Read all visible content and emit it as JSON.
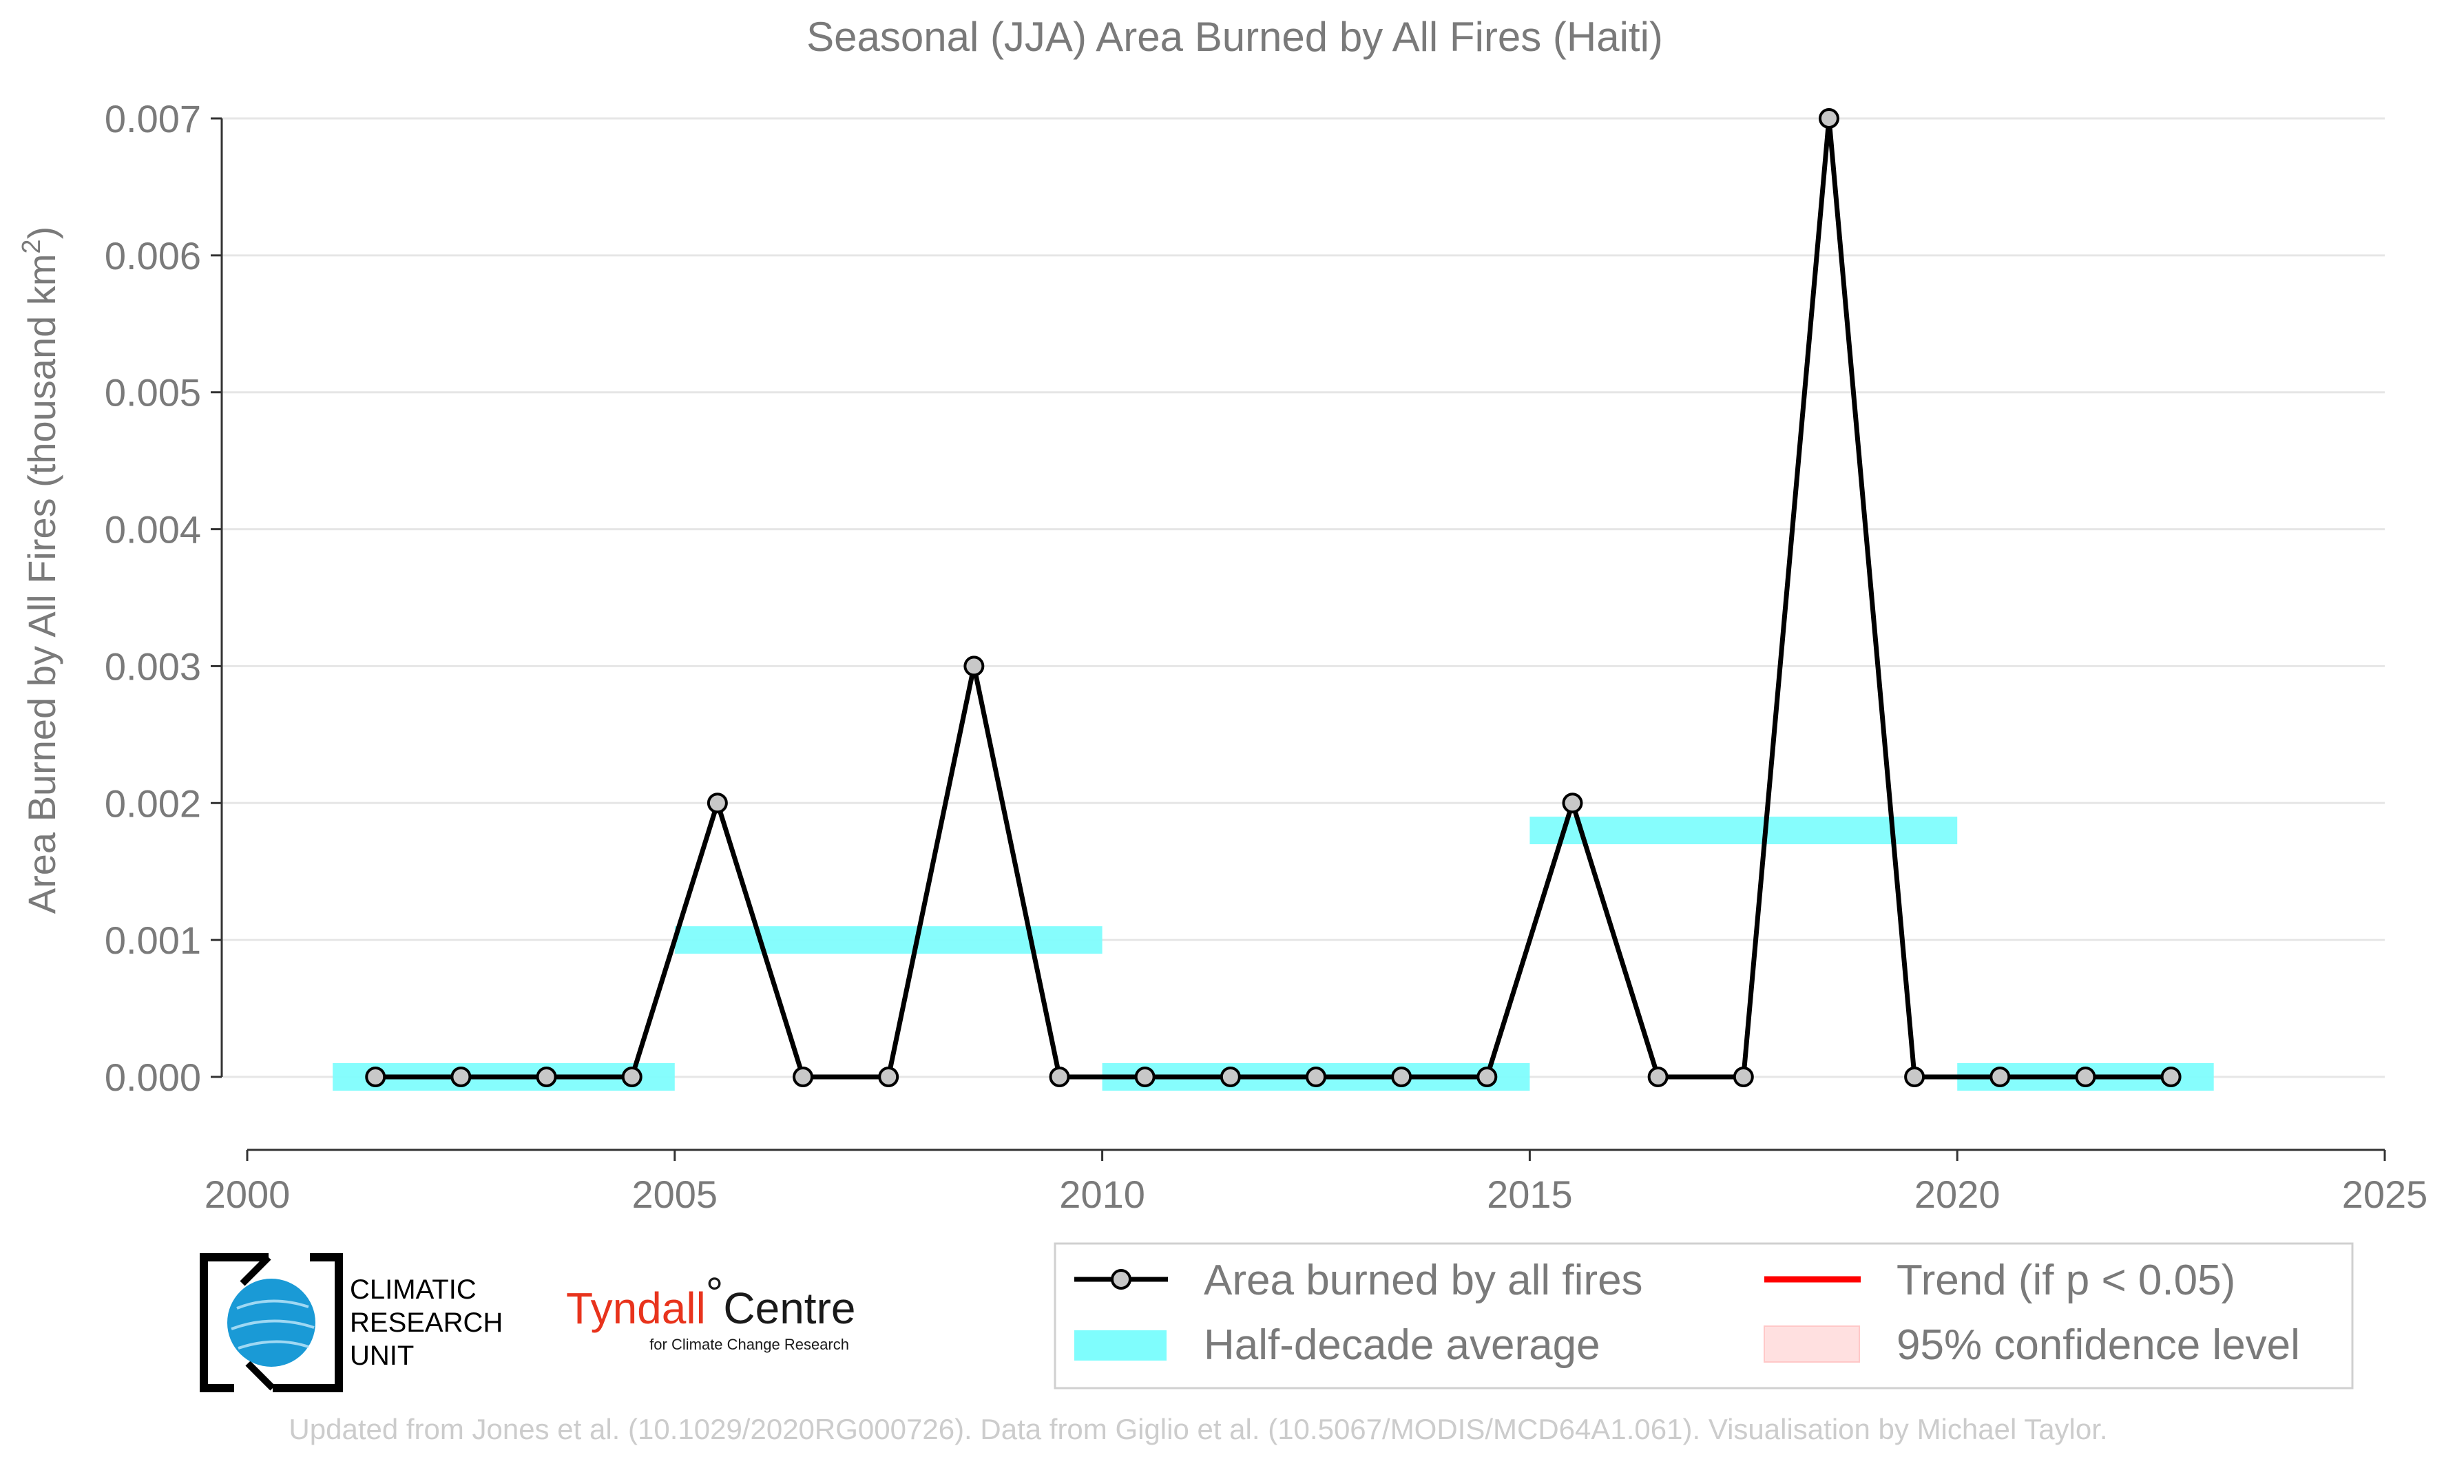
{
  "chart_data": {
    "type": "line",
    "title": "Seasonal (JJA) Area Burned by All Fires (Haiti)",
    "ylabel": "Area Burned by All Fires (thousand km²)",
    "xlabel": "",
    "xlim": [
      2000,
      2025
    ],
    "ylim": [
      -0.00053,
      0.007
    ],
    "x_ticks": [
      "2000",
      "2005",
      "2010",
      "2015",
      "2020",
      "2025"
    ],
    "y_ticks": [
      "0.000",
      "0.001",
      "0.002",
      "0.003",
      "0.004",
      "0.005",
      "0.006",
      "0.007"
    ],
    "grid": true,
    "series": [
      {
        "name": "Area burned by all fires",
        "color": "#000000",
        "x": [
          2001.5,
          2002.5,
          2003.5,
          2004.5,
          2005.5,
          2006.5,
          2007.5,
          2008.5,
          2009.5,
          2010.5,
          2011.5,
          2012.5,
          2013.5,
          2014.5,
          2015.5,
          2016.5,
          2017.5,
          2018.5,
          2019.5,
          2020.5,
          2021.5,
          2022.5
        ],
        "values": [
          0,
          0,
          0,
          0,
          0.002,
          0,
          0,
          0.003,
          0,
          0,
          0,
          0,
          0,
          0,
          0.002,
          0,
          0,
          0.007,
          0,
          0,
          0,
          0
        ]
      }
    ],
    "half_decade_average": {
      "name": "Half-decade average",
      "color": "#7ffdfd",
      "segments": [
        {
          "start": 2001,
          "end": 2005,
          "value": 0
        },
        {
          "start": 2005,
          "end": 2010,
          "value": 0.001
        },
        {
          "start": 2010,
          "end": 2015,
          "value": 0
        },
        {
          "start": 2015,
          "end": 2020,
          "value": 0.0018
        },
        {
          "start": 2020,
          "end": 2023,
          "value": 0
        }
      ]
    },
    "legend": {
      "placement": "bottom-right",
      "entries": [
        {
          "label": "Area burned by all fires",
          "kind": "line-marker",
          "color": "#000000"
        },
        {
          "label": "Trend (if p < 0.05)",
          "kind": "line",
          "color": "#ff0000"
        },
        {
          "label": "Half-decade average",
          "kind": "band",
          "color": "#7ffdfd"
        },
        {
          "label": "95% confidence level",
          "kind": "patch",
          "color": "#ffe0e0"
        }
      ]
    }
  },
  "logos": {
    "cru": {
      "lines": [
        "CLIMATIC",
        "RESEARCH",
        "UNIT"
      ]
    },
    "tyndall": {
      "main": "Tyndall",
      "degree": "°",
      "centre": "Centre",
      "sub": "for Climate Change Research"
    }
  },
  "footer": "Updated from Jones et al. (10.1029/2020RG000726). Data from Giglio et al. (10.5067/MODIS/MCD64A1.061). Visualisation by Michael Taylor."
}
